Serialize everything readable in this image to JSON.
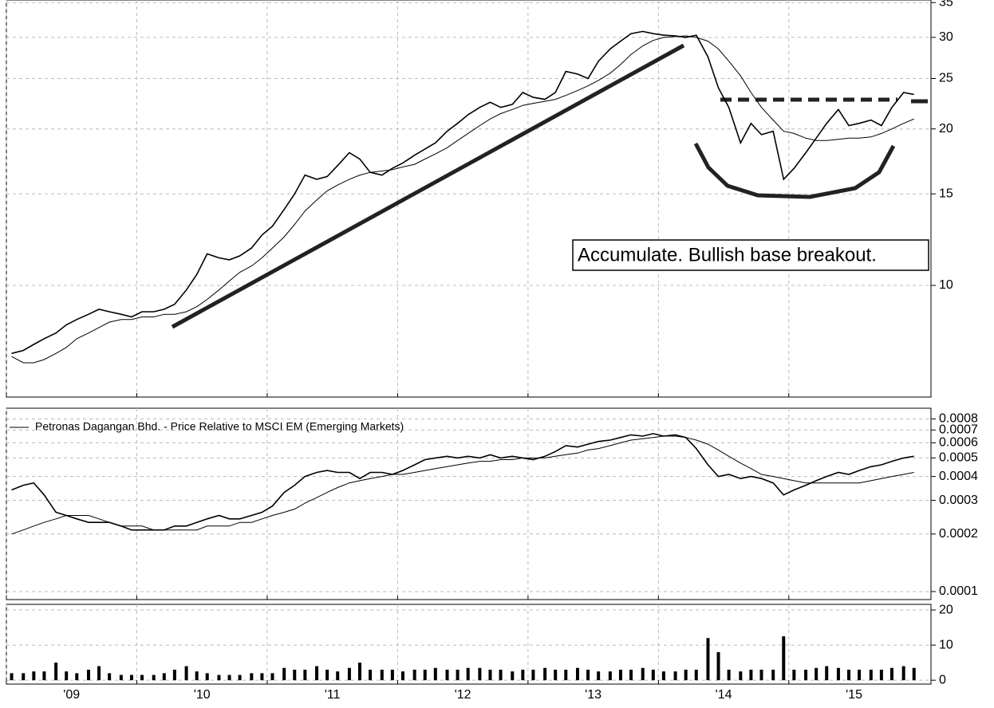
{
  "chart_data": [
    {
      "type": "line",
      "log_scale": true,
      "grid": true,
      "ylim": [
        6.1,
        35.4
      ],
      "yticks": [
        10,
        15,
        20,
        25,
        30,
        35
      ],
      "xlim": [
        2009.0,
        2016.09
      ],
      "annotations": [
        "Accumulate. Bullish base breakout."
      ],
      "x": [
        2009.04,
        2009.13,
        2009.21,
        2009.29,
        2009.38,
        2009.46,
        2009.54,
        2009.63,
        2009.71,
        2009.79,
        2009.88,
        2009.96,
        2010.04,
        2010.13,
        2010.21,
        2010.29,
        2010.38,
        2010.46,
        2010.54,
        2010.63,
        2010.71,
        2010.79,
        2010.88,
        2010.96,
        2011.04,
        2011.13,
        2011.21,
        2011.29,
        2011.38,
        2011.46,
        2011.54,
        2011.63,
        2011.71,
        2011.79,
        2011.88,
        2011.96,
        2012.04,
        2012.13,
        2012.21,
        2012.29,
        2012.38,
        2012.46,
        2012.54,
        2012.63,
        2012.71,
        2012.79,
        2012.88,
        2012.96,
        2013.04,
        2013.13,
        2013.21,
        2013.29,
        2013.38,
        2013.46,
        2013.54,
        2013.63,
        2013.71,
        2013.79,
        2013.88,
        2013.96,
        2014.04,
        2014.13,
        2014.21,
        2014.29,
        2014.38,
        2014.46,
        2014.54,
        2014.63,
        2014.71,
        2014.79,
        2014.88,
        2014.96,
        2015.04,
        2015.13,
        2015.21,
        2015.29,
        2015.38,
        2015.46,
        2015.54,
        2015.63,
        2015.71,
        2015.79,
        2015.88,
        2015.96
      ],
      "series": [
        {
          "color": "#000000",
          "values": [
            7.4,
            7.5,
            7.7,
            7.9,
            8.1,
            8.4,
            8.6,
            8.8,
            9.0,
            8.9,
            8.8,
            8.7,
            8.9,
            8.9,
            9.0,
            9.2,
            9.8,
            10.5,
            11.5,
            11.3,
            11.2,
            11.4,
            11.8,
            12.5,
            13.0,
            14.0,
            15.0,
            16.3,
            16.0,
            16.2,
            17.0,
            18.0,
            17.5,
            16.5,
            16.3,
            16.8,
            17.2,
            17.8,
            18.3,
            18.8,
            19.8,
            20.5,
            21.3,
            22.0,
            22.5,
            22.0,
            22.3,
            23.5,
            23.0,
            22.8,
            23.5,
            25.8,
            25.5,
            25.0,
            27.0,
            28.5,
            29.5,
            30.5,
            30.8,
            30.5,
            30.3,
            30.2,
            30.0,
            30.3,
            27.5,
            24.0,
            22.0,
            18.8,
            20.5,
            19.5,
            19.8,
            16.0,
            16.8,
            18.0,
            19.2,
            20.5,
            21.8,
            20.3,
            20.5,
            20.8,
            20.3,
            22.0,
            23.5,
            23.3
          ]
        },
        {
          "color": "#000000",
          "values": [
            7.3,
            7.1,
            7.1,
            7.2,
            7.4,
            7.6,
            7.9,
            8.1,
            8.3,
            8.5,
            8.6,
            8.6,
            8.7,
            8.7,
            8.8,
            8.8,
            8.9,
            9.1,
            9.4,
            9.8,
            10.2,
            10.6,
            10.9,
            11.3,
            11.8,
            12.4,
            13.1,
            13.9,
            14.6,
            15.2,
            15.6,
            16.0,
            16.3,
            16.5,
            16.6,
            16.7,
            16.9,
            17.1,
            17.5,
            17.9,
            18.4,
            19.0,
            19.6,
            20.3,
            20.9,
            21.4,
            21.8,
            22.2,
            22.4,
            22.6,
            22.8,
            23.2,
            23.7,
            24.2,
            24.8,
            25.6,
            26.6,
            27.8,
            28.9,
            29.6,
            30.0,
            30.1,
            30.2,
            30.0,
            29.5,
            28.5,
            27.0,
            25.3,
            23.5,
            22.0,
            20.8,
            19.8,
            19.6,
            19.2,
            19.0,
            19.0,
            19.1,
            19.2,
            19.2,
            19.3,
            19.6,
            20.0,
            20.5,
            20.9
          ]
        }
      ]
    },
    {
      "type": "line",
      "log_scale": true,
      "grid": true,
      "ylim": [
        9.08e-05,
        0.00091
      ],
      "yticks": [
        0.0001,
        0.0002,
        0.0003,
        0.0004,
        0.0005,
        0.0006,
        0.0007,
        0.0008
      ],
      "xlim": [
        2009.0,
        2016.09
      ],
      "x": [
        2009.04,
        2009.13,
        2009.21,
        2009.29,
        2009.38,
        2009.46,
        2009.54,
        2009.63,
        2009.71,
        2009.79,
        2009.88,
        2009.96,
        2010.04,
        2010.13,
        2010.21,
        2010.29,
        2010.38,
        2010.46,
        2010.54,
        2010.63,
        2010.71,
        2010.79,
        2010.88,
        2010.96,
        2011.04,
        2011.13,
        2011.21,
        2011.29,
        2011.38,
        2011.46,
        2011.54,
        2011.63,
        2011.71,
        2011.79,
        2011.88,
        2011.96,
        2012.04,
        2012.13,
        2012.21,
        2012.29,
        2012.38,
        2012.46,
        2012.54,
        2012.63,
        2012.71,
        2012.79,
        2012.88,
        2012.96,
        2013.04,
        2013.13,
        2013.21,
        2013.29,
        2013.38,
        2013.46,
        2013.54,
        2013.63,
        2013.71,
        2013.79,
        2013.88,
        2013.96,
        2014.04,
        2014.13,
        2014.21,
        2014.29,
        2014.38,
        2014.46,
        2014.54,
        2014.63,
        2014.71,
        2014.79,
        2014.88,
        2014.96,
        2015.04,
        2015.13,
        2015.21,
        2015.29,
        2015.38,
        2015.46,
        2015.54,
        2015.63,
        2015.71,
        2015.79,
        2015.88,
        2015.96
      ],
      "series": [
        {
          "name": "Petronas Dagangan Bhd. - Price Relative to MSCI EM (Emerging Markets)",
          "color": "#000000",
          "values": [
            0.00034,
            0.00036,
            0.00037,
            0.00032,
            0.00026,
            0.00025,
            0.00024,
            0.00023,
            0.00023,
            0.00023,
            0.00022,
            0.00021,
            0.00021,
            0.00021,
            0.00021,
            0.00022,
            0.00022,
            0.00023,
            0.00024,
            0.00025,
            0.00024,
            0.00024,
            0.00025,
            0.00026,
            0.00028,
            0.00033,
            0.00036,
            0.0004,
            0.00042,
            0.00043,
            0.00042,
            0.00042,
            0.00039,
            0.00042,
            0.00042,
            0.00041,
            0.00043,
            0.00046,
            0.00049,
            0.0005,
            0.00051,
            0.0005,
            0.00051,
            0.0005,
            0.00052,
            0.0005,
            0.00051,
            0.0005,
            0.00049,
            0.00051,
            0.00054,
            0.00058,
            0.00057,
            0.00059,
            0.00061,
            0.00062,
            0.00064,
            0.00066,
            0.00065,
            0.00067,
            0.00065,
            0.00066,
            0.00064,
            0.00056,
            0.00046,
            0.0004,
            0.00041,
            0.00039,
            0.0004,
            0.00039,
            0.00037,
            0.00032,
            0.00034,
            0.00036,
            0.00038,
            0.0004,
            0.00042,
            0.00041,
            0.00043,
            0.00045,
            0.00046,
            0.00048,
            0.0005,
            0.00051
          ]
        },
        {
          "color": "#000000",
          "values": [
            0.0002,
            0.00021,
            0.00022,
            0.00023,
            0.00024,
            0.00025,
            0.00025,
            0.00025,
            0.00024,
            0.00023,
            0.00022,
            0.00022,
            0.00022,
            0.00021,
            0.00021,
            0.00021,
            0.00021,
            0.00021,
            0.00022,
            0.00022,
            0.00022,
            0.00023,
            0.00023,
            0.00024,
            0.00025,
            0.00026,
            0.00027,
            0.00029,
            0.00031,
            0.00033,
            0.00035,
            0.00037,
            0.00038,
            0.00039,
            0.0004,
            0.00041,
            0.00041,
            0.00042,
            0.00043,
            0.00044,
            0.00045,
            0.00046,
            0.00047,
            0.00048,
            0.00048,
            0.00049,
            0.00049,
            0.0005,
            0.0005,
            0.0005,
            0.00051,
            0.00052,
            0.00053,
            0.00055,
            0.00056,
            0.00058,
            0.0006,
            0.00062,
            0.00063,
            0.00064,
            0.00065,
            0.00065,
            0.00064,
            0.00062,
            0.00059,
            0.00055,
            0.00051,
            0.00047,
            0.00044,
            0.00041,
            0.0004,
            0.00039,
            0.00038,
            0.00037,
            0.00037,
            0.00037,
            0.00037,
            0.00037,
            0.00037,
            0.00038,
            0.00039,
            0.0004,
            0.00041,
            0.00042
          ]
        }
      ]
    },
    {
      "type": "bar",
      "grid": true,
      "color": "#000000",
      "ylim": [
        -1.1,
        21.6
      ],
      "yticks": [
        0,
        10,
        20
      ],
      "xlim": [
        2009.0,
        2016.09
      ],
      "xticks": [
        {
          "value": 2009,
          "label": "'09"
        },
        {
          "value": 2010,
          "label": "'10"
        },
        {
          "value": 2011,
          "label": "'11"
        },
        {
          "value": 2012,
          "label": "'12"
        },
        {
          "value": 2013,
          "label": "'13"
        },
        {
          "value": 2014,
          "label": "'14"
        },
        {
          "value": 2015,
          "label": "'15"
        }
      ],
      "x": [
        2009.04,
        2009.13,
        2009.21,
        2009.29,
        2009.38,
        2009.46,
        2009.54,
        2009.63,
        2009.71,
        2009.79,
        2009.88,
        2009.96,
        2010.04,
        2010.13,
        2010.21,
        2010.29,
        2010.38,
        2010.46,
        2010.54,
        2010.63,
        2010.71,
        2010.79,
        2010.88,
        2010.96,
        2011.04,
        2011.13,
        2011.21,
        2011.29,
        2011.38,
        2011.46,
        2011.54,
        2011.63,
        2011.71,
        2011.79,
        2011.88,
        2011.96,
        2012.04,
        2012.13,
        2012.21,
        2012.29,
        2012.38,
        2012.46,
        2012.54,
        2012.63,
        2012.71,
        2012.79,
        2012.88,
        2012.96,
        2013.04,
        2013.13,
        2013.21,
        2013.29,
        2013.38,
        2013.46,
        2013.54,
        2013.63,
        2013.71,
        2013.79,
        2013.88,
        2013.96,
        2014.04,
        2014.13,
        2014.21,
        2014.29,
        2014.38,
        2014.46,
        2014.54,
        2014.63,
        2014.71,
        2014.79,
        2014.88,
        2014.96,
        2015.04,
        2015.13,
        2015.21,
        2015.29,
        2015.38,
        2015.46,
        2015.54,
        2015.63,
        2015.71,
        2015.79,
        2015.88,
        2015.96
      ],
      "values": [
        2,
        2,
        2.5,
        2.5,
        5,
        2.5,
        2,
        3,
        4,
        2,
        1.5,
        1.5,
        1.5,
        1.5,
        2,
        3,
        4,
        2.5,
        2,
        1.5,
        1.5,
        1.5,
        2,
        2,
        2,
        3.5,
        3,
        3,
        4,
        3,
        2.5,
        3.5,
        5,
        3,
        3,
        3,
        2.5,
        3,
        3,
        3.5,
        3,
        3,
        3.5,
        3.5,
        3,
        3,
        2.5,
        3,
        3,
        3.5,
        3,
        3,
        3.5,
        3,
        2.5,
        2.5,
        3,
        3,
        3.5,
        3,
        2.5,
        2.5,
        3,
        3,
        12,
        8,
        3,
        2.5,
        3,
        3,
        3,
        12.5,
        3,
        3,
        3.5,
        4,
        3.5,
        3,
        3,
        3,
        3,
        3.5,
        4,
        3.5
      ]
    }
  ]
}
